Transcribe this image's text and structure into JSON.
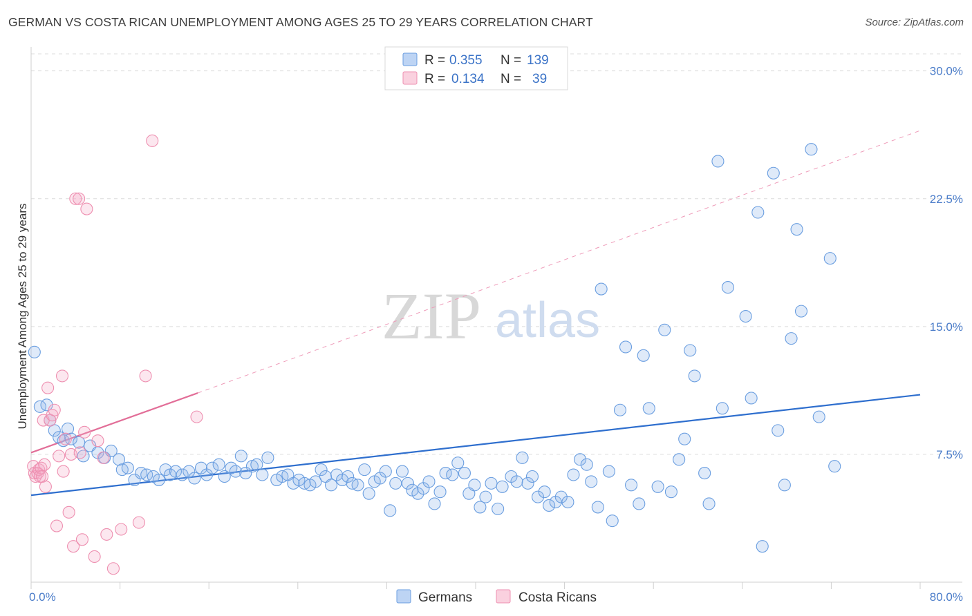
{
  "header": {
    "title": "GERMAN VS COSTA RICAN UNEMPLOYMENT AMONG AGES 25 TO 29 YEARS CORRELATION CHART",
    "source": "Source: ZipAtlas.com"
  },
  "watermark": {
    "zip": "ZIP",
    "atlas": "atlas"
  },
  "legend": {
    "rows": [
      {
        "r_label": "R =",
        "r_value": "0.355",
        "n_label": "N =",
        "n_value": "139",
        "color": "#6a9ee0"
      },
      {
        "r_label": "R =",
        "r_value": "0.134",
        "n_label": "N =",
        "n_value": "39",
        "color": "#ee8fb0"
      }
    ]
  },
  "bottom_legend": [
    {
      "label": "Germans",
      "color": "#6a9ee0"
    },
    {
      "label": "Costa Ricans",
      "color": "#ee8fb0"
    }
  ],
  "chart_data": {
    "type": "scatter",
    "title": "GERMAN VS COSTA RICAN UNEMPLOYMENT AMONG AGES 25 TO 29 YEARS CORRELATION CHART",
    "ylabel": "Unemployment Among Ages 25 to 29 years",
    "xlabel": "",
    "xlim": [
      0,
      80
    ],
    "ylim": [
      0,
      31
    ],
    "x_tick_labels": [
      "0.0%",
      "80.0%"
    ],
    "y_tick_values": [
      7.5,
      15.0,
      22.5,
      30.0
    ],
    "y_tick_labels": [
      "7.5%",
      "15.0%",
      "22.5%",
      "30.0%"
    ],
    "grid": true,
    "legend_position": "top-center",
    "series": [
      {
        "name": "Germans",
        "color": "#6a9ee0",
        "points": [
          [
            0.3,
            13.5
          ],
          [
            0.8,
            10.3
          ],
          [
            1.4,
            10.4
          ],
          [
            1.7,
            9.5
          ],
          [
            2.1,
            8.9
          ],
          [
            2.5,
            8.5
          ],
          [
            2.9,
            8.3
          ],
          [
            3.3,
            9.0
          ],
          [
            3.6,
            8.4
          ],
          [
            4.3,
            8.2
          ],
          [
            4.7,
            7.4
          ],
          [
            5.3,
            8.0
          ],
          [
            6.0,
            7.6
          ],
          [
            6.6,
            7.3
          ],
          [
            7.2,
            7.7
          ],
          [
            7.9,
            7.2
          ],
          [
            8.2,
            6.6
          ],
          [
            8.7,
            6.7
          ],
          [
            9.3,
            6.0
          ],
          [
            9.9,
            6.4
          ],
          [
            10.4,
            6.3
          ],
          [
            11.0,
            6.2
          ],
          [
            11.5,
            6.0
          ],
          [
            12.1,
            6.6
          ],
          [
            12.5,
            6.3
          ],
          [
            13.0,
            6.5
          ],
          [
            13.6,
            6.3
          ],
          [
            14.2,
            6.5
          ],
          [
            14.7,
            6.1
          ],
          [
            15.3,
            6.7
          ],
          [
            15.8,
            6.3
          ],
          [
            16.3,
            6.7
          ],
          [
            16.9,
            6.9
          ],
          [
            17.4,
            6.2
          ],
          [
            18.0,
            6.7
          ],
          [
            18.4,
            6.5
          ],
          [
            18.9,
            7.4
          ],
          [
            19.3,
            6.4
          ],
          [
            19.9,
            6.8
          ],
          [
            20.3,
            6.9
          ],
          [
            20.8,
            6.3
          ],
          [
            21.3,
            7.3
          ],
          [
            22.1,
            6.0
          ],
          [
            22.6,
            6.2
          ],
          [
            23.1,
            6.3
          ],
          [
            23.6,
            5.8
          ],
          [
            24.1,
            6.0
          ],
          [
            24.6,
            5.8
          ],
          [
            25.1,
            5.7
          ],
          [
            25.6,
            5.9
          ],
          [
            26.1,
            6.6
          ],
          [
            26.5,
            6.2
          ],
          [
            27.0,
            5.7
          ],
          [
            27.5,
            6.3
          ],
          [
            28.0,
            6.0
          ],
          [
            28.5,
            6.2
          ],
          [
            28.9,
            5.8
          ],
          [
            29.4,
            5.7
          ],
          [
            30.0,
            6.6
          ],
          [
            30.4,
            5.2
          ],
          [
            30.9,
            5.9
          ],
          [
            31.4,
            6.1
          ],
          [
            31.9,
            6.5
          ],
          [
            32.3,
            4.2
          ],
          [
            32.8,
            5.8
          ],
          [
            33.4,
            6.5
          ],
          [
            33.9,
            5.8
          ],
          [
            34.3,
            5.4
          ],
          [
            34.8,
            5.2
          ],
          [
            35.3,
            5.5
          ],
          [
            35.8,
            5.9
          ],
          [
            36.3,
            4.6
          ],
          [
            36.8,
            5.3
          ],
          [
            37.3,
            6.4
          ],
          [
            37.9,
            6.3
          ],
          [
            38.4,
            7.0
          ],
          [
            39.0,
            6.4
          ],
          [
            39.4,
            5.2
          ],
          [
            39.9,
            5.7
          ],
          [
            40.4,
            4.4
          ],
          [
            40.9,
            5.0
          ],
          [
            41.4,
            5.8
          ],
          [
            42.0,
            4.3
          ],
          [
            42.4,
            5.6
          ],
          [
            43.2,
            6.2
          ],
          [
            43.7,
            5.9
          ],
          [
            44.2,
            7.3
          ],
          [
            44.7,
            5.8
          ],
          [
            45.1,
            6.2
          ],
          [
            45.6,
            5.0
          ],
          [
            46.2,
            5.3
          ],
          [
            46.6,
            4.5
          ],
          [
            47.2,
            4.7
          ],
          [
            47.7,
            5.0
          ],
          [
            48.3,
            4.7
          ],
          [
            48.8,
            6.3
          ],
          [
            49.4,
            7.2
          ],
          [
            50.0,
            6.9
          ],
          [
            50.4,
            5.9
          ],
          [
            51.0,
            4.4
          ],
          [
            51.3,
            17.2
          ],
          [
            52.0,
            6.5
          ],
          [
            52.3,
            3.6
          ],
          [
            53.0,
            10.1
          ],
          [
            53.5,
            13.8
          ],
          [
            54.0,
            5.7
          ],
          [
            54.7,
            4.6
          ],
          [
            55.1,
            13.3
          ],
          [
            55.6,
            10.2
          ],
          [
            56.4,
            5.6
          ],
          [
            57.0,
            14.8
          ],
          [
            57.6,
            5.3
          ],
          [
            58.3,
            7.2
          ],
          [
            58.8,
            8.4
          ],
          [
            59.3,
            13.6
          ],
          [
            59.7,
            12.1
          ],
          [
            60.6,
            6.4
          ],
          [
            61.0,
            4.6
          ],
          [
            61.8,
            24.7
          ],
          [
            62.2,
            10.2
          ],
          [
            62.7,
            17.3
          ],
          [
            64.3,
            15.6
          ],
          [
            64.8,
            10.8
          ],
          [
            65.4,
            21.7
          ],
          [
            65.8,
            2.1
          ],
          [
            66.8,
            24.0
          ],
          [
            67.2,
            8.9
          ],
          [
            67.8,
            5.7
          ],
          [
            68.4,
            14.3
          ],
          [
            68.9,
            20.7
          ],
          [
            69.3,
            15.9
          ],
          [
            70.2,
            25.4
          ],
          [
            70.9,
            9.7
          ],
          [
            71.9,
            19.0
          ],
          [
            72.3,
            6.8
          ]
        ]
      },
      {
        "name": "Costa Ricans",
        "color": "#ee8fb0",
        "points": [
          [
            0.2,
            6.8
          ],
          [
            0.3,
            6.4
          ],
          [
            0.4,
            6.2
          ],
          [
            0.6,
            6.4
          ],
          [
            0.7,
            6.6
          ],
          [
            0.8,
            6.2
          ],
          [
            0.9,
            6.7
          ],
          [
            1.0,
            6.2
          ],
          [
            1.1,
            9.5
          ],
          [
            1.2,
            6.9
          ],
          [
            1.3,
            5.6
          ],
          [
            1.5,
            11.4
          ],
          [
            1.7,
            9.5
          ],
          [
            1.9,
            9.8
          ],
          [
            2.1,
            10.1
          ],
          [
            2.3,
            3.3
          ],
          [
            2.5,
            7.4
          ],
          [
            2.8,
            12.1
          ],
          [
            2.9,
            6.5
          ],
          [
            3.1,
            8.4
          ],
          [
            3.4,
            4.1
          ],
          [
            3.6,
            7.5
          ],
          [
            3.8,
            2.1
          ],
          [
            4.0,
            22.5
          ],
          [
            4.3,
            22.5
          ],
          [
            4.4,
            7.6
          ],
          [
            4.6,
            2.5
          ],
          [
            4.8,
            8.8
          ],
          [
            5.0,
            21.9
          ],
          [
            5.7,
            1.5
          ],
          [
            6.0,
            8.3
          ],
          [
            6.8,
            2.8
          ],
          [
            7.4,
            0.8
          ],
          [
            8.1,
            3.1
          ],
          [
            9.7,
            3.5
          ],
          [
            10.3,
            12.1
          ],
          [
            10.9,
            25.9
          ],
          [
            14.9,
            9.7
          ],
          [
            6.5,
            7.3
          ]
        ]
      }
    ],
    "trendlines": [
      {
        "series": "Germans",
        "x": [
          0,
          80
        ],
        "y": [
          5.1,
          11.0
        ],
        "style": "solid",
        "color": "#2f6fce"
      },
      {
        "series": "Costa Ricans",
        "x": [
          0,
          15
        ],
        "y": [
          7.6,
          11.1
        ],
        "style": "solid",
        "color": "#e26e98"
      },
      {
        "series": "Costa Ricans",
        "x": [
          15,
          80
        ],
        "y": [
          11.1,
          26.5
        ],
        "style": "dashed",
        "color": "#ee9ab8"
      }
    ]
  }
}
